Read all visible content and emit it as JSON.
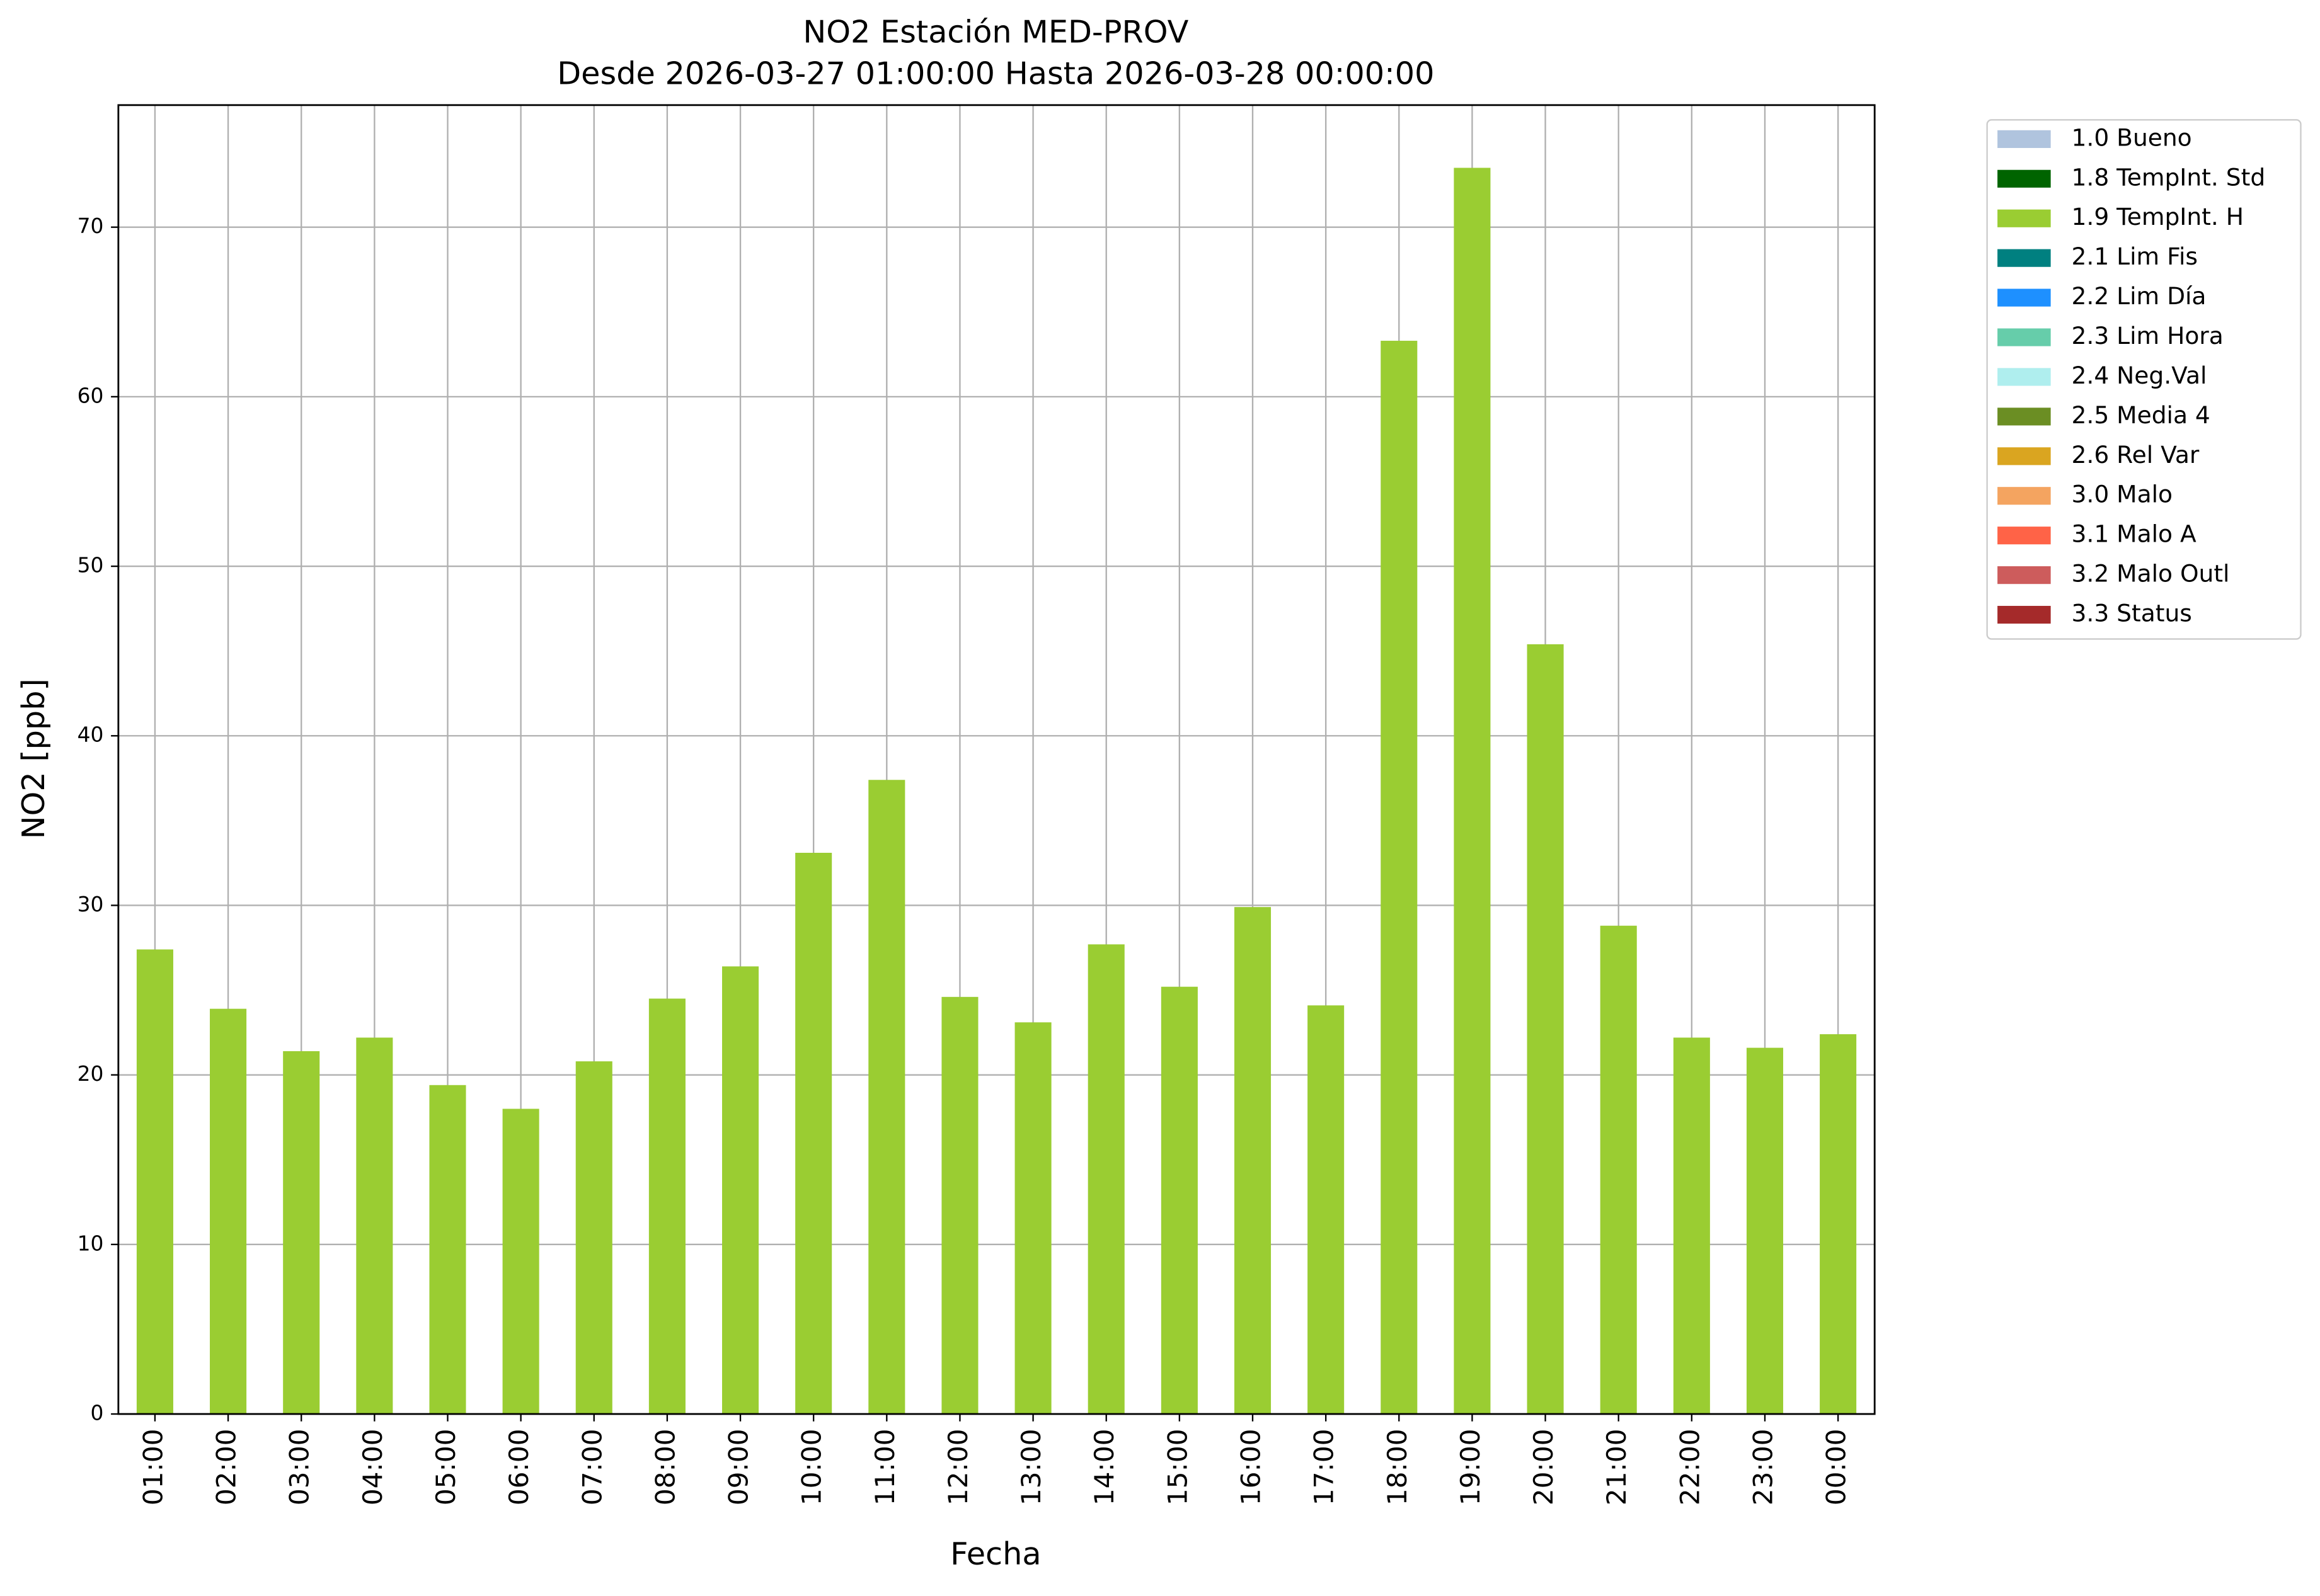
{
  "chart_data": {
    "type": "stacked-bar",
    "title": "NO2 Estación MED-PROV",
    "subtitle": "Desde 2026-03-27 01:00:00 Hasta 2026-03-28 00:00:00",
    "x_label": "Fecha",
    "y_label": "NO2 [ppb]",
    "categories": [
      "01:00",
      "02:00",
      "03:00",
      "04:00",
      "05:00",
      "06:00",
      "07:00",
      "08:00",
      "09:00",
      "10:00",
      "11:00",
      "12:00",
      "13:00",
      "14:00",
      "15:00",
      "16:00",
      "17:00",
      "18:00",
      "19:00",
      "20:00",
      "21:00",
      "22:00",
      "23:00",
      "00:00"
    ],
    "series": [
      {
        "name": "1.0 Bueno",
        "color": "#b0c4de",
        "values": [
          null,
          null,
          null,
          null,
          null,
          null,
          null,
          null,
          null,
          null,
          null,
          null,
          null,
          null,
          null,
          null,
          null,
          null,
          null,
          null,
          null,
          null,
          null,
          null
        ]
      },
      {
        "name": "1.8 TempInt. Std",
        "color": "#006400",
        "values": [
          null,
          null,
          null,
          null,
          null,
          null,
          null,
          null,
          null,
          null,
          null,
          null,
          null,
          null,
          null,
          null,
          null,
          null,
          null,
          null,
          null,
          null,
          null,
          null
        ]
      },
      {
        "name": "1.9 TempInt. H",
        "color": "#9acd32",
        "values": [
          27.4,
          23.9,
          21.4,
          22.2,
          19.4,
          18.0,
          20.8,
          24.5,
          26.4,
          33.1,
          37.4,
          24.6,
          23.1,
          27.7,
          25.2,
          29.9,
          24.1,
          63.3,
          73.5,
          45.4,
          28.8,
          22.2,
          21.6,
          22.4
        ]
      },
      {
        "name": "2.1 Lim Fis",
        "color": "#008080",
        "values": [
          null,
          null,
          null,
          null,
          null,
          null,
          null,
          null,
          null,
          null,
          null,
          null,
          null,
          null,
          null,
          null,
          null,
          null,
          null,
          null,
          null,
          null,
          null,
          null
        ]
      },
      {
        "name": "2.2 Lim Día",
        "color": "#1e90ff",
        "values": [
          null,
          null,
          null,
          null,
          null,
          null,
          null,
          null,
          null,
          null,
          null,
          null,
          null,
          null,
          null,
          null,
          null,
          null,
          null,
          null,
          null,
          null,
          null,
          null
        ]
      },
      {
        "name": "2.3 Lim Hora",
        "color": "#66cdaa",
        "values": [
          null,
          null,
          null,
          null,
          null,
          null,
          null,
          null,
          null,
          null,
          null,
          null,
          null,
          null,
          null,
          null,
          null,
          null,
          null,
          null,
          null,
          null,
          null,
          null
        ]
      },
      {
        "name": "2.4 Neg.Val",
        "color": "#afeeee",
        "values": [
          null,
          null,
          null,
          null,
          null,
          null,
          null,
          null,
          null,
          null,
          null,
          null,
          null,
          null,
          null,
          null,
          null,
          null,
          null,
          null,
          null,
          null,
          null,
          null
        ]
      },
      {
        "name": "2.5 Media 4",
        "color": "#6b8e23",
        "values": [
          null,
          null,
          null,
          null,
          null,
          null,
          null,
          null,
          null,
          null,
          null,
          null,
          null,
          null,
          null,
          null,
          null,
          null,
          null,
          null,
          null,
          null,
          null,
          null
        ]
      },
      {
        "name": "2.6 Rel Var",
        "color": "#daa520",
        "values": [
          null,
          null,
          null,
          null,
          null,
          null,
          null,
          null,
          null,
          null,
          null,
          null,
          null,
          null,
          null,
          null,
          null,
          null,
          null,
          null,
          null,
          null,
          null,
          null
        ]
      },
      {
        "name": "3.0 Malo",
        "color": "#f4a460",
        "values": [
          null,
          null,
          null,
          null,
          null,
          null,
          null,
          null,
          null,
          null,
          null,
          null,
          null,
          null,
          null,
          null,
          null,
          null,
          null,
          null,
          null,
          null,
          null,
          null
        ]
      },
      {
        "name": "3.1 Malo A",
        "color": "#ff6347",
        "values": [
          null,
          null,
          null,
          null,
          null,
          null,
          null,
          null,
          null,
          null,
          null,
          null,
          null,
          null,
          null,
          null,
          null,
          null,
          null,
          null,
          null,
          null,
          null,
          null
        ]
      },
      {
        "name": "3.2 Malo Outl",
        "color": "#cd5c5c",
        "values": [
          null,
          null,
          null,
          null,
          null,
          null,
          null,
          null,
          null,
          null,
          null,
          null,
          null,
          null,
          null,
          null,
          null,
          null,
          null,
          null,
          null,
          null,
          null,
          null
        ]
      },
      {
        "name": "3.3 Status",
        "color": "#a52a2a",
        "values": [
          null,
          null,
          null,
          null,
          null,
          null,
          null,
          null,
          null,
          null,
          null,
          null,
          null,
          null,
          null,
          null,
          null,
          null,
          null,
          null,
          null,
          null,
          null,
          null
        ]
      }
    ],
    "ylim": [
      0,
      77.2
    ],
    "yticks": [
      0,
      10,
      20,
      30,
      40,
      50,
      60,
      70
    ],
    "grid": true,
    "legend": "outside-right"
  }
}
